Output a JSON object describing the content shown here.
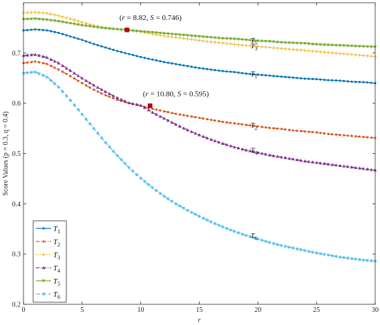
{
  "chart_data": {
    "type": "line",
    "xlabel": "r",
    "ylabel": "Score Values (p = 0.3, q = 0.4)",
    "xlim": [
      0,
      30
    ],
    "ylim": [
      0.2,
      0.8
    ],
    "xticks": [
      "0",
      "5",
      "10",
      "15",
      "20",
      "25",
      "30"
    ],
    "yticks": [
      "0.2",
      "0.3",
      "0.4",
      "0.5",
      "0.6",
      "0.7"
    ],
    "grid": false,
    "legend_position": "bottom-left",
    "series": [
      {
        "name": "T",
        "sub": "1",
        "color": "#0072bd",
        "marker": "dot",
        "dash": "",
        "x": [
          0,
          1,
          2,
          3,
          4,
          5,
          6,
          7,
          8,
          9,
          10,
          11,
          12,
          13,
          14,
          15,
          16,
          17,
          18,
          19,
          20,
          21,
          22,
          23,
          24,
          25,
          26,
          27,
          28,
          29,
          30
        ],
        "y": [
          0.745,
          0.747,
          0.745,
          0.74,
          0.733,
          0.726,
          0.718,
          0.711,
          0.704,
          0.698,
          0.692,
          0.687,
          0.682,
          0.678,
          0.674,
          0.67,
          0.667,
          0.664,
          0.662,
          0.659,
          0.657,
          0.655,
          0.653,
          0.651,
          0.649,
          0.648,
          0.646,
          0.645,
          0.643,
          0.642,
          0.64
        ]
      },
      {
        "name": "T",
        "sub": "2",
        "color": "#d95319",
        "marker": "dot",
        "dash": "5,2,1,2",
        "x": [
          0,
          1,
          2,
          3,
          4,
          5,
          6,
          7,
          8,
          9,
          10,
          11,
          12,
          13,
          14,
          15,
          16,
          17,
          18,
          19,
          20,
          21,
          22,
          23,
          24,
          25,
          26,
          27,
          28,
          29,
          30
        ],
        "y": [
          0.68,
          0.683,
          0.678,
          0.667,
          0.654,
          0.64,
          0.627,
          0.616,
          0.607,
          0.6,
          0.595,
          0.589,
          0.584,
          0.579,
          0.575,
          0.571,
          0.567,
          0.563,
          0.56,
          0.557,
          0.554,
          0.551,
          0.549,
          0.546,
          0.544,
          0.542,
          0.539,
          0.537,
          0.535,
          0.533,
          0.531
        ]
      },
      {
        "name": "T",
        "sub": "3",
        "color": "#edb120",
        "marker": "plus",
        "dash": "1.5,1.5",
        "x": [
          0,
          1,
          2,
          3,
          4,
          5,
          6,
          7,
          8,
          9,
          10,
          11,
          12,
          13,
          14,
          15,
          16,
          17,
          18,
          19,
          20,
          21,
          22,
          23,
          24,
          25,
          26,
          27,
          28,
          29,
          30
        ],
        "y": [
          0.78,
          0.781,
          0.779,
          0.774,
          0.768,
          0.761,
          0.755,
          0.75,
          0.747,
          0.745,
          0.742,
          0.738,
          0.734,
          0.731,
          0.728,
          0.725,
          0.722,
          0.72,
          0.717,
          0.715,
          0.713,
          0.711,
          0.709,
          0.707,
          0.705,
          0.703,
          0.701,
          0.699,
          0.697,
          0.695,
          0.693
        ]
      },
      {
        "name": "T",
        "sub": "4",
        "color": "#7e2f8e",
        "marker": "triangle",
        "dash": "5,2,1,2",
        "x": [
          0,
          1,
          2,
          3,
          4,
          5,
          6,
          7,
          8,
          9,
          10,
          11,
          12,
          13,
          14,
          15,
          16,
          17,
          18,
          19,
          20,
          21,
          22,
          23,
          24,
          25,
          26,
          27,
          28,
          29,
          30
        ],
        "y": [
          0.695,
          0.697,
          0.691,
          0.68,
          0.665,
          0.65,
          0.636,
          0.623,
          0.611,
          0.601,
          0.596,
          0.582,
          0.57,
          0.558,
          0.547,
          0.537,
          0.528,
          0.52,
          0.513,
          0.507,
          0.502,
          0.497,
          0.493,
          0.489,
          0.485,
          0.482,
          0.479,
          0.476,
          0.473,
          0.47,
          0.467
        ]
      },
      {
        "name": "T",
        "sub": "5",
        "color": "#77ac30",
        "marker": "triangle-down",
        "dash": "",
        "x": [
          0,
          1,
          2,
          3,
          4,
          5,
          6,
          7,
          8,
          9,
          10,
          11,
          12,
          13,
          14,
          15,
          16,
          17,
          18,
          19,
          20,
          21,
          22,
          23,
          24,
          25,
          26,
          27,
          28,
          29,
          30
        ],
        "y": [
          0.767,
          0.768,
          0.766,
          0.763,
          0.759,
          0.755,
          0.752,
          0.749,
          0.747,
          0.745,
          0.743,
          0.741,
          0.739,
          0.737,
          0.735,
          0.733,
          0.731,
          0.729,
          0.728,
          0.726,
          0.724,
          0.723,
          0.721,
          0.72,
          0.719,
          0.717,
          0.716,
          0.715,
          0.714,
          0.713,
          0.712
        ]
      },
      {
        "name": "T",
        "sub": "6",
        "color": "#4dbeee",
        "marker": "star",
        "dash": "6,3",
        "x": [
          0,
          1,
          2,
          3,
          4,
          5,
          6,
          7,
          8,
          9,
          10,
          11,
          12,
          13,
          14,
          15,
          16,
          17,
          18,
          19,
          20,
          21,
          22,
          23,
          24,
          25,
          26,
          27,
          28,
          29,
          30
        ],
        "y": [
          0.66,
          0.662,
          0.652,
          0.632,
          0.606,
          0.578,
          0.55,
          0.522,
          0.496,
          0.472,
          0.451,
          0.432,
          0.415,
          0.4,
          0.387,
          0.375,
          0.364,
          0.354,
          0.345,
          0.337,
          0.33,
          0.323,
          0.317,
          0.312,
          0.307,
          0.302,
          0.298,
          0.294,
          0.291,
          0.288,
          0.286
        ]
      }
    ],
    "curve_labels": [
      {
        "sub": "5",
        "x": 19.3,
        "y": 0.726,
        "color": "#77ac30"
      },
      {
        "sub": "3",
        "x": 19.3,
        "y": 0.715,
        "color": "#edb120"
      },
      {
        "sub": "1",
        "x": 19.3,
        "y": 0.659,
        "color": "#0072bd"
      },
      {
        "sub": "2",
        "x": 19.3,
        "y": 0.557,
        "color": "#d95319"
      },
      {
        "sub": "4",
        "x": 19.3,
        "y": 0.507,
        "color": "#7e2f8e"
      },
      {
        "sub": "6",
        "x": 19.3,
        "y": 0.337,
        "color": "#4dbeee"
      }
    ],
    "highlights": [
      {
        "x": 8.82,
        "y": 0.746,
        "label_r": "8.82",
        "label_s": "0.746",
        "lx": 8.3,
        "ly": 0.766
      },
      {
        "x": 10.8,
        "y": 0.595,
        "label_r": "10.80",
        "label_s": "0.595",
        "lx": 10.3,
        "ly": 0.614
      }
    ]
  }
}
